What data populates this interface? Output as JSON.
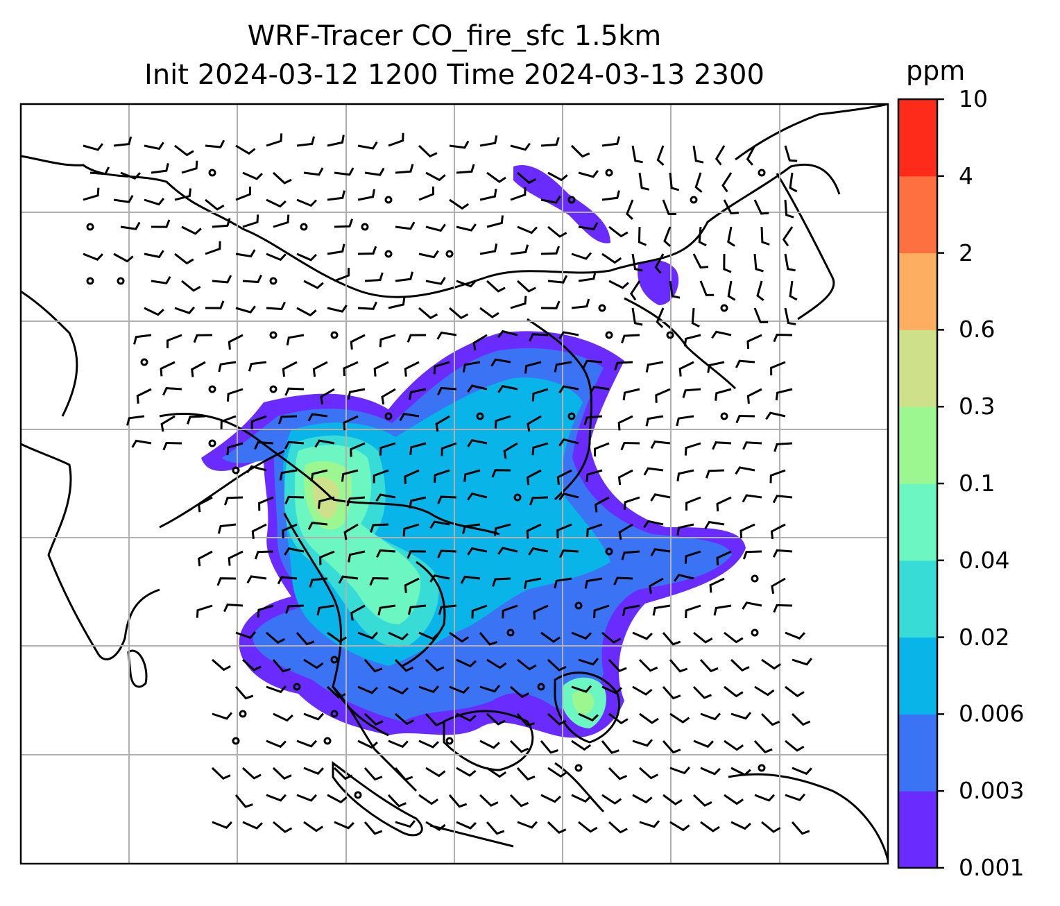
{
  "title": {
    "line1": "WRF-Tracer CO_fire_sfc 1.5km",
    "line2": "Init 2024-03-12 1200 Time 2024-03-13 2300"
  },
  "colorbar": {
    "unit": "ppm",
    "levels": [
      "0.001",
      "0.003",
      "0.006",
      "0.02",
      "0.04",
      "0.1",
      "0.3",
      "0.6",
      "2",
      "4",
      "10"
    ],
    "colors": [
      "#6a2bff",
      "#3a74f5",
      "#08b4e8",
      "#38dcd6",
      "#6cf7c2",
      "#9cf790",
      "#cfe08a",
      "#fdae61",
      "#ff7040",
      "#ff2b1a"
    ]
  },
  "map": {
    "gridlines": true,
    "coastlines": true,
    "field": "CO_fire_sfc",
    "overlay": "wind barbs"
  }
}
